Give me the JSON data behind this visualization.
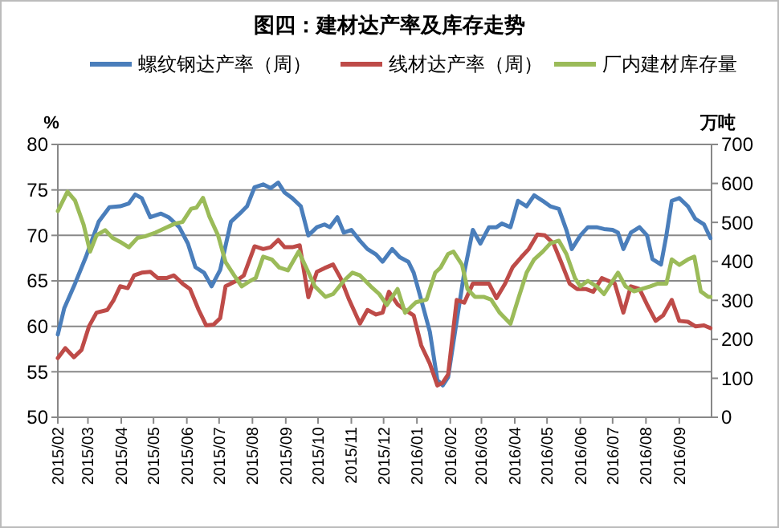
{
  "chart_data": {
    "type": "line",
    "title": "图四：建材达产率及库存走势",
    "ylabel": "%",
    "y2label": "万吨",
    "legend": "top",
    "grid": "y",
    "xlim": [
      "2015-02-01",
      "2016-10-01"
    ],
    "xticks": [
      {
        "value": "2015-02",
        "label": "2015/02"
      },
      {
        "value": "2015-03",
        "label": "2015/03"
      },
      {
        "value": "2015-04",
        "label": "2015/04"
      },
      {
        "value": "2015-05",
        "label": "2015/05"
      },
      {
        "value": "2015-06",
        "label": "2015/06"
      },
      {
        "value": "2015-07",
        "label": "2015/07"
      },
      {
        "value": "2015-08",
        "label": "2015/08"
      },
      {
        "value": "2015-09",
        "label": "2015/09"
      },
      {
        "value": "2015-10",
        "label": "2015/10"
      },
      {
        "value": "2015-11",
        "label": "2015/11"
      },
      {
        "value": "2015-12",
        "label": "2015/12"
      },
      {
        "value": "2016-01",
        "label": "2016/01"
      },
      {
        "value": "2016-02",
        "label": "2016/02"
      },
      {
        "value": "2016-03",
        "label": "2016/03"
      },
      {
        "value": "2016-04",
        "label": "2016/04"
      },
      {
        "value": "2016-05",
        "label": "2016/05"
      },
      {
        "value": "2016-06",
        "label": "2016/06"
      },
      {
        "value": "2016-07",
        "label": "2016/07"
      },
      {
        "value": "2016-08",
        "label": "2016/08"
      },
      {
        "value": "2016-09",
        "label": "2016/09"
      }
    ],
    "ylim": [
      50,
      80
    ],
    "yticks": [
      50,
      55,
      60,
      65,
      70,
      75,
      80
    ],
    "y2lim": [
      0,
      700
    ],
    "y2ticks": [
      0,
      100,
      200,
      300,
      400,
      500,
      600,
      700
    ],
    "series": [
      {
        "name": "螺纹钢达产率（周）",
        "color": "#4a7ebb",
        "x": [
          "2015-02-01",
          "2015-02-07",
          "2015-02-17",
          "2015-02-27",
          "2015-03-11",
          "2015-03-21",
          "2015-03-31",
          "2015-04-08",
          "2015-04-14",
          "2015-04-20",
          "2015-04-28",
          "2015-05-08",
          "2015-05-15",
          "2015-05-25",
          "2015-06-02",
          "2015-06-09",
          "2015-06-17",
          "2015-06-24",
          "2015-07-02",
          "2015-07-12",
          "2015-07-22",
          "2015-07-27",
          "2015-08-03",
          "2015-08-11",
          "2015-08-18",
          "2015-08-25",
          "2015-08-31",
          "2015-09-07",
          "2015-09-15",
          "2015-09-22",
          "2015-09-30",
          "2015-10-07",
          "2015-10-12",
          "2015-10-19",
          "2015-10-25",
          "2015-11-01",
          "2015-11-09",
          "2015-11-16",
          "2015-11-24",
          "2015-11-30",
          "2015-12-09",
          "2015-12-16",
          "2015-12-24",
          "2015-12-29",
          "2016-01-05",
          "2016-01-13",
          "2016-01-20",
          "2016-01-25",
          "2016-01-30",
          "2016-02-07",
          "2016-02-14",
          "2016-02-22",
          "2016-02-29",
          "2016-03-08",
          "2016-03-15",
          "2016-03-20",
          "2016-03-28",
          "2016-04-04",
          "2016-04-12",
          "2016-04-19",
          "2016-04-27",
          "2016-05-04",
          "2016-05-12",
          "2016-05-19",
          "2016-05-24",
          "2016-06-01",
          "2016-06-08",
          "2016-06-16",
          "2016-06-23",
          "2016-07-01",
          "2016-07-06",
          "2016-07-11",
          "2016-07-18",
          "2016-07-26",
          "2016-08-02",
          "2016-08-07",
          "2016-08-15",
          "2016-08-20",
          "2016-08-25",
          "2016-09-01",
          "2016-09-09",
          "2016-09-16",
          "2016-09-24",
          "2016-09-30"
        ],
        "values": [
          59.1,
          62,
          64.7,
          67.6,
          71.5,
          73.1,
          73.2,
          73.5,
          74.5,
          74.1,
          72,
          72.4,
          72,
          70.9,
          69.1,
          66.5,
          65.9,
          64.4,
          66.2,
          71.5,
          72.6,
          73.2,
          75.3,
          75.6,
          75.2,
          75.8,
          74.7,
          74.1,
          73.2,
          70,
          70.9,
          71.2,
          70.9,
          72,
          70.3,
          70.6,
          69.4,
          68.5,
          67.9,
          67.1,
          68.5,
          67.6,
          67.1,
          65.9,
          62.9,
          59.4,
          54.1,
          53.5,
          54.4,
          60.6,
          65.9,
          70.6,
          69.1,
          70.9,
          70.9,
          71.3,
          70.9,
          73.8,
          73.2,
          74.4,
          73.8,
          73.2,
          72.9,
          70.6,
          68.5,
          70,
          70.9,
          70.9,
          70.7,
          70.6,
          70.3,
          68.5,
          70.3,
          70.9,
          70,
          67.4,
          66.8,
          70,
          73.8,
          74.1,
          73.2,
          71.8,
          71.2,
          69.7
        ]
      },
      {
        "name": "线材达产率（周）",
        "color": "#be4b48",
        "x": [
          "2015-02-01",
          "2015-02-08",
          "2015-02-16",
          "2015-02-23",
          "2015-03-02",
          "2015-03-09",
          "2015-03-19",
          "2015-03-25",
          "2015-03-31",
          "2015-04-07",
          "2015-04-13",
          "2015-04-20",
          "2015-04-28",
          "2015-05-05",
          "2015-05-13",
          "2015-05-20",
          "2015-05-28",
          "2015-06-04",
          "2015-06-12",
          "2015-06-19",
          "2015-06-26",
          "2015-07-02",
          "2015-07-07",
          "2015-07-17",
          "2015-07-24",
          "2015-08-03",
          "2015-08-11",
          "2015-08-18",
          "2015-08-25",
          "2015-08-31",
          "2015-09-07",
          "2015-09-14",
          "2015-09-22",
          "2015-09-30",
          "2015-10-07",
          "2015-10-15",
          "2015-10-22",
          "2015-10-30",
          "2015-11-09",
          "2015-11-16",
          "2015-11-24",
          "2015-11-30",
          "2015-12-06",
          "2015-12-14",
          "2015-12-21",
          "2015-12-29",
          "2016-01-05",
          "2016-01-13",
          "2016-01-20",
          "2016-01-25",
          "2016-01-30",
          "2016-02-07",
          "2016-02-14",
          "2016-02-22",
          "2016-02-29",
          "2016-03-08",
          "2016-03-15",
          "2016-03-23",
          "2016-03-30",
          "2016-04-07",
          "2016-04-14",
          "2016-04-22",
          "2016-04-29",
          "2016-05-07",
          "2016-05-14",
          "2016-05-22",
          "2016-05-29",
          "2016-06-06",
          "2016-06-13",
          "2016-06-21",
          "2016-06-27",
          "2016-07-03",
          "2016-07-11",
          "2016-07-18",
          "2016-07-26",
          "2016-08-02",
          "2016-08-10",
          "2016-08-17",
          "2016-08-25",
          "2016-09-01",
          "2016-09-09",
          "2016-09-16",
          "2016-09-24",
          "2016-09-30"
        ],
        "values": [
          56.5,
          57.6,
          56.6,
          57.4,
          60,
          61.5,
          61.8,
          62.9,
          64.4,
          64.2,
          65.6,
          65.9,
          66,
          65.3,
          65.3,
          65.6,
          64.7,
          64.1,
          61.8,
          60.1,
          60.2,
          60.9,
          64.4,
          65,
          65.6,
          68.8,
          68.5,
          68.7,
          69.5,
          68.7,
          68.7,
          68.9,
          63.2,
          66,
          66.4,
          66.8,
          65.3,
          62.9,
          60.3,
          61.8,
          61.3,
          61.5,
          63.8,
          62.4,
          61.8,
          61.2,
          57.9,
          55.9,
          53.5,
          53.8,
          54.7,
          62.9,
          62.6,
          64.7,
          64.7,
          64.7,
          63.1,
          64.7,
          66.5,
          67.6,
          68.5,
          70.1,
          70,
          69.1,
          67.1,
          64.7,
          64.1,
          64.1,
          63.8,
          65.3,
          65,
          64.7,
          61.5,
          64.4,
          64.1,
          62.4,
          60.6,
          61.2,
          62.9,
          60.6,
          60.5,
          60,
          60.1,
          59.8
        ]
      },
      {
        "name": "厂内建材库存量",
        "color": "#9bbb59",
        "axis": "y2",
        "x": [
          "2015-02-01",
          "2015-02-10",
          "2015-02-17",
          "2015-02-25",
          "2015-03-03",
          "2015-03-09",
          "2015-03-17",
          "2015-03-24",
          "2015-03-31",
          "2015-04-08",
          "2015-04-16",
          "2015-04-23",
          "2015-05-03",
          "2015-05-13",
          "2015-05-21",
          "2015-05-28",
          "2015-06-05",
          "2015-06-10",
          "2015-06-16",
          "2015-06-22",
          "2015-06-30",
          "2015-07-07",
          "2015-07-15",
          "2015-07-22",
          "2015-07-30",
          "2015-08-04",
          "2015-08-11",
          "2015-08-19",
          "2015-08-26",
          "2015-09-03",
          "2015-09-13",
          "2015-09-20",
          "2015-09-28",
          "2015-10-08",
          "2015-10-15",
          "2015-10-25",
          "2015-11-02",
          "2015-11-09",
          "2015-11-19",
          "2015-11-27",
          "2015-12-04",
          "2015-12-14",
          "2015-12-21",
          "2015-12-31",
          "2016-01-10",
          "2016-01-18",
          "2016-01-23",
          "2016-01-30",
          "2016-02-04",
          "2016-02-12",
          "2016-02-17",
          "2016-02-24",
          "2016-03-03",
          "2016-03-10",
          "2016-03-18",
          "2016-03-28",
          "2016-04-04",
          "2016-04-12",
          "2016-04-19",
          "2016-04-27",
          "2016-05-04",
          "2016-05-12",
          "2016-05-19",
          "2016-05-27",
          "2016-06-01",
          "2016-06-08",
          "2016-06-16",
          "2016-06-23",
          "2016-07-01",
          "2016-07-06",
          "2016-07-13",
          "2016-07-21",
          "2016-07-28",
          "2016-08-05",
          "2016-08-12",
          "2016-08-20",
          "2016-08-25",
          "2016-09-01",
          "2016-09-09",
          "2016-09-15",
          "2016-09-21",
          "2016-09-28",
          "2016-09-30"
        ],
        "values": [
          529,
          579,
          556,
          494,
          425,
          467,
          480,
          460,
          450,
          436,
          460,
          464,
          474,
          487,
          497,
          501,
          535,
          538,
          563,
          515,
          467,
          398,
          364,
          336,
          350,
          357,
          412,
          405,
          384,
          377,
          425,
          384,
          336,
          309,
          316,
          350,
          371,
          364,
          336,
          316,
          288,
          329,
          268,
          295,
          302,
          371,
          384,
          419,
          425,
          391,
          329,
          309,
          309,
          302,
          268,
          240,
          302,
          371,
          405,
          425,
          446,
          453,
          419,
          357,
          336,
          350,
          336,
          316,
          350,
          371,
          336,
          323,
          329,
          336,
          343,
          343,
          405,
          391,
          405,
          412,
          323,
          309,
          309
        ]
      }
    ]
  }
}
